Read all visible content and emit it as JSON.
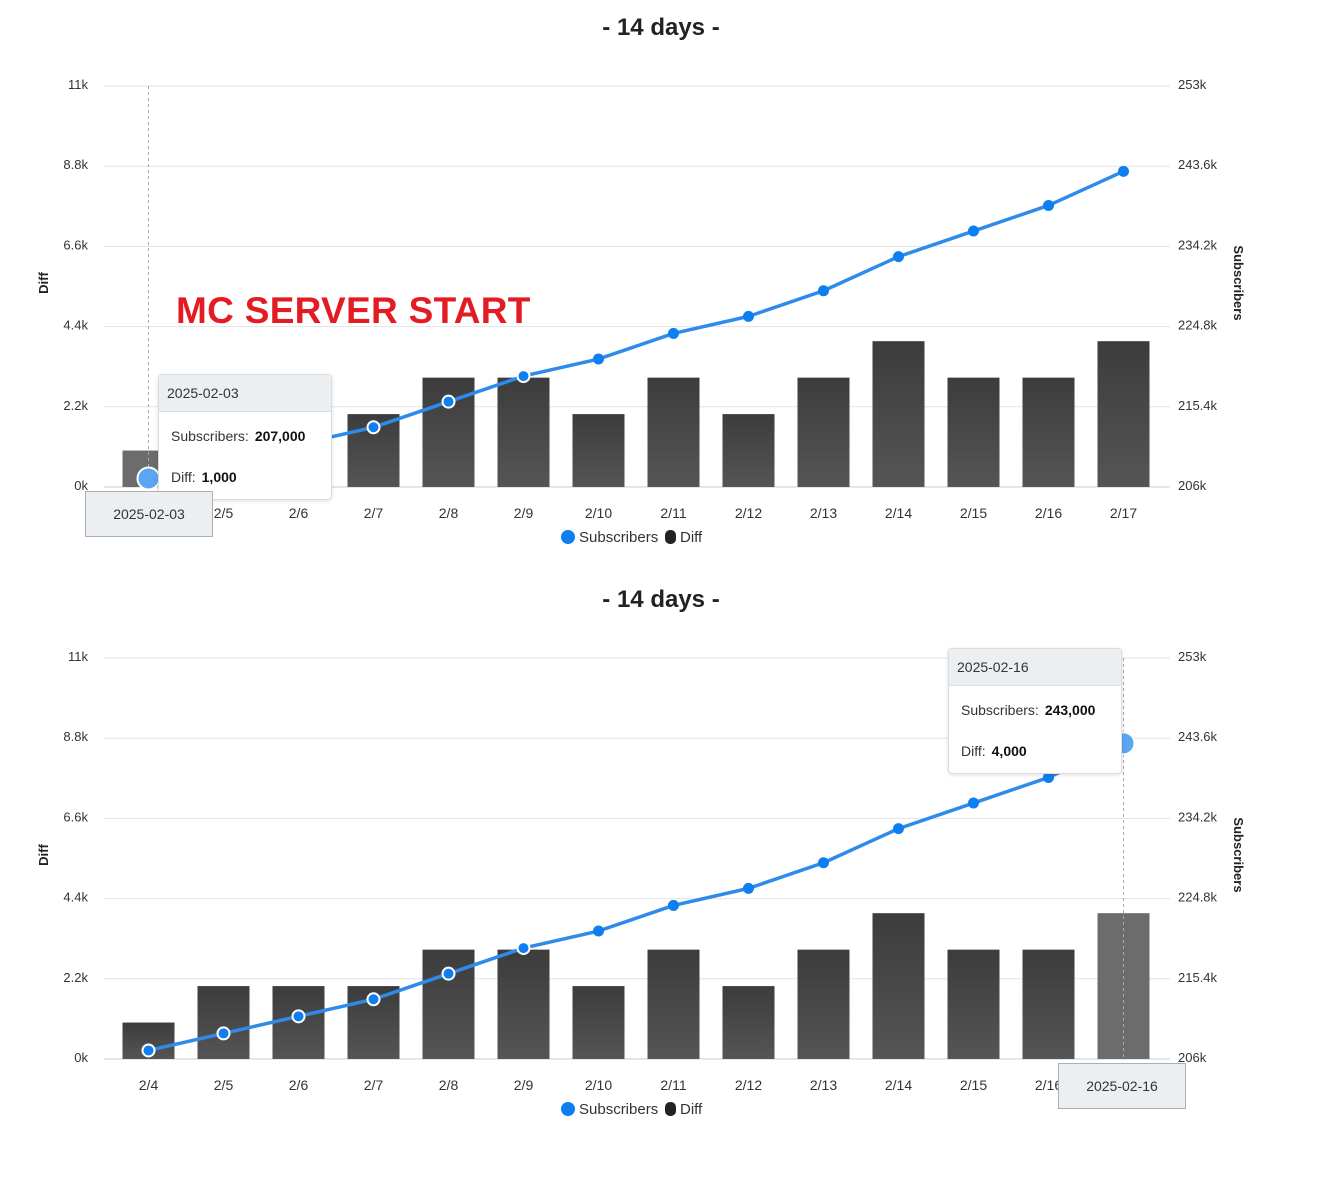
{
  "chart_data": [
    {
      "type": "bar+line",
      "title": "- 14 days -",
      "categories": [
        "2/4",
        "2/5",
        "2/6",
        "2/7",
        "2/8",
        "2/9",
        "2/10",
        "2/11",
        "2/12",
        "2/13",
        "2/14",
        "2/15",
        "2/16",
        "2/17"
      ],
      "series": [
        {
          "name": "Diff",
          "type": "bar",
          "axis": "left",
          "values": [
            1000,
            2000,
            2000,
            2000,
            3000,
            3000,
            2000,
            3000,
            2000,
            3000,
            4000,
            3000,
            3000,
            4000
          ]
        },
        {
          "name": "Subscribers",
          "type": "line",
          "axis": "right",
          "values": [
            207000,
            209000,
            211000,
            213000,
            216000,
            219000,
            221000,
            224000,
            226000,
            229000,
            233000,
            236000,
            239000,
            243000
          ]
        }
      ],
      "ylabel_left": "Diff",
      "ylabel_right": "Subscribers",
      "ylim_left": [
        0,
        11000
      ],
      "ylim_right": [
        206000,
        253000
      ],
      "yticks_left": [
        "0k",
        "2.2k",
        "4.4k",
        "6.6k",
        "8.8k",
        "11k"
      ],
      "yticks_right": [
        "206k",
        "215.4k",
        "224.8k",
        "234.2k",
        "243.6k",
        "253k"
      ],
      "grid": true,
      "legend": "bottom-center",
      "hover_index": 0,
      "crosshair_label": "2025-02-03",
      "tooltip": {
        "date": "2025-02-03",
        "subscribers_label": "Subscribers:",
        "subscribers_value": "207,000",
        "diff_label": "Diff:",
        "diff_value": "1,000"
      },
      "annotation": "MC SERVER START"
    },
    {
      "type": "bar+line",
      "title": "- 14 days -",
      "categories": [
        "2/4",
        "2/5",
        "2/6",
        "2/7",
        "2/8",
        "2/9",
        "2/10",
        "2/11",
        "2/12",
        "2/13",
        "2/14",
        "2/15",
        "2/16",
        "2/17"
      ],
      "series": [
        {
          "name": "Diff",
          "type": "bar",
          "axis": "left",
          "values": [
            1000,
            2000,
            2000,
            2000,
            3000,
            3000,
            2000,
            3000,
            2000,
            3000,
            4000,
            3000,
            3000,
            4000
          ]
        },
        {
          "name": "Subscribers",
          "type": "line",
          "axis": "right",
          "values": [
            207000,
            209000,
            211000,
            213000,
            216000,
            219000,
            221000,
            224000,
            226000,
            229000,
            233000,
            236000,
            239000,
            243000
          ]
        }
      ],
      "ylabel_left": "Diff",
      "ylabel_right": "Subscribers",
      "ylim_left": [
        0,
        11000
      ],
      "ylim_right": [
        206000,
        253000
      ],
      "yticks_left": [
        "0k",
        "2.2k",
        "4.4k",
        "6.6k",
        "8.8k",
        "11k"
      ],
      "yticks_right": [
        "206k",
        "215.4k",
        "224.8k",
        "234.2k",
        "243.6k",
        "253k"
      ],
      "grid": true,
      "legend": "bottom-center",
      "hover_index": 13,
      "crosshair_label": "2025-02-16",
      "tooltip": {
        "date": "2025-02-16",
        "subscribers_label": "Subscribers:",
        "subscribers_value": "243,000",
        "diff_label": "Diff:",
        "diff_value": "4,000"
      }
    }
  ],
  "colors": {
    "bar": "#454545",
    "bar_highlight": "#6c6c6c",
    "line": "#2f8bea",
    "point": "#0d7ff0",
    "annotation": "#e31b23",
    "grid": "#e3e3e3"
  },
  "legend_items": [
    {
      "label": "Subscribers",
      "icon": "blue-circle-icon"
    },
    {
      "label": "Diff",
      "icon": "dark-pill-icon"
    }
  ]
}
